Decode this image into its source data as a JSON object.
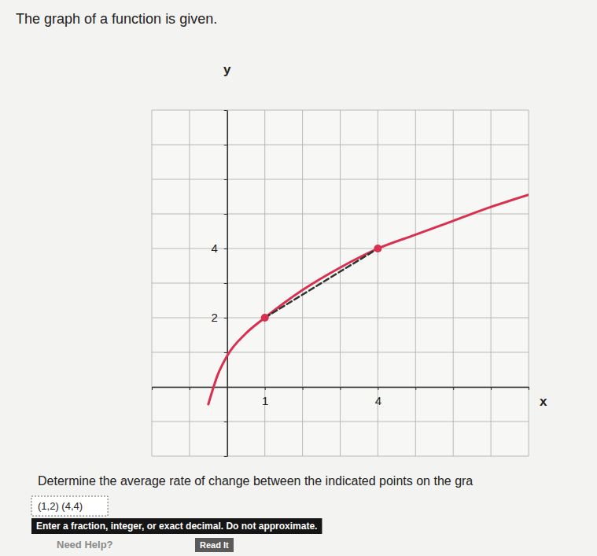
{
  "chart_data": {
    "type": "line",
    "title": "The graph of a function is given.",
    "x_label": "x",
    "y_label": "y",
    "xlim": [
      -2,
      8
    ],
    "ylim": [
      -2,
      8
    ],
    "xticks": [
      {
        "value": -2,
        "label": null
      },
      {
        "value": -1,
        "label": null
      },
      {
        "value": 0,
        "label": null
      },
      1,
      {
        "value": 2,
        "label": null
      },
      {
        "value": 3,
        "label": null
      },
      4,
      {
        "value": 5,
        "label": null
      },
      {
        "value": 6,
        "label": null
      },
      {
        "value": 7,
        "label": null
      },
      {
        "value": 8,
        "label": null
      }
    ],
    "yticks": [
      {
        "value": -2,
        "label": null
      },
      {
        "value": -1,
        "label": null
      },
      {
        "value": 0,
        "label": null
      },
      {
        "value": 1,
        "label": null
      },
      2,
      {
        "value": 3,
        "label": null
      },
      4,
      {
        "value": 5,
        "label": null
      },
      {
        "value": 6,
        "label": null
      },
      {
        "value": 7,
        "label": null
      },
      {
        "value": 8,
        "label": null
      }
    ],
    "grid": true,
    "series": [
      {
        "type": "line",
        "color": "#d9304f",
        "line_style": "solid",
        "x": [
          -0.5,
          -0.25,
          0,
          0.5,
          1,
          2,
          3,
          4,
          5,
          6,
          7,
          8
        ],
        "values": [
          -0.5,
          0.35,
          0.9,
          1.55,
          2,
          2.8,
          3.45,
          4,
          4.4,
          4.8,
          5.2,
          5.55
        ]
      },
      {
        "type": "line",
        "color": "#333333",
        "line_style": "dashed",
        "x": [
          1,
          4
        ],
        "values": [
          2,
          4
        ]
      },
      {
        "type": "scatter",
        "color": "#d9304f",
        "marker": "circle",
        "x": [
          1,
          4
        ],
        "values": [
          2,
          4
        ]
      }
    ],
    "annotations": [
      "Determine the average rate of change between the indicated points on the gra",
      "(1,2) (4,4)",
      "Enter a fraction, integer, or exact decimal. Do not approximate.",
      "Need Help?",
      "Read It"
    ]
  }
}
